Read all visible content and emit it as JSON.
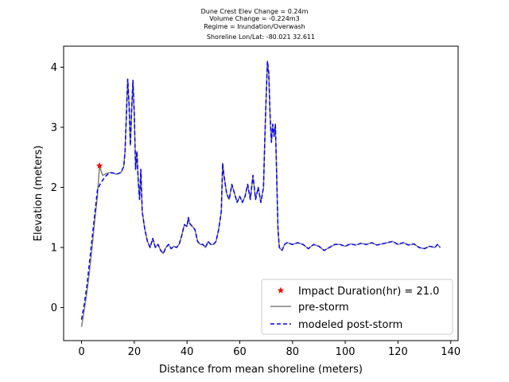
{
  "chart_data": {
    "type": "line",
    "title_lines": [
      "Dune Crest Elev Change = 0.24m",
      "Volume Change = -0.224m3",
      "Regime = Inundation/Overwash",
      "Shoreline Lon/Lat: -80.021 32.611"
    ],
    "xlabel": "Distance from mean shoreline (meters)",
    "ylabel": "Elevation (meters)",
    "xlim": [
      -6.8,
      142.8
    ],
    "ylim": [
      -0.55,
      4.35
    ],
    "xticks": [
      0,
      20,
      40,
      60,
      80,
      100,
      120,
      140
    ],
    "yticks": [
      0,
      1,
      2,
      3,
      4
    ],
    "legend_position": "lower right",
    "series": [
      {
        "name": "pre-storm",
        "color": "#808080",
        "style": "solid",
        "points": [
          [
            0,
            -0.32
          ],
          [
            1,
            -0.05
          ],
          [
            2,
            0.25
          ],
          [
            3,
            0.6
          ],
          [
            4,
            1.0
          ],
          [
            5,
            1.45
          ],
          [
            6,
            1.85
          ],
          [
            6.8,
            2.35
          ],
          [
            8,
            2.2
          ],
          [
            9,
            2.22
          ],
          [
            10,
            2.24
          ],
          [
            11,
            2.25
          ],
          [
            12,
            2.24
          ],
          [
            13,
            2.22
          ],
          [
            14,
            2.23
          ],
          [
            15,
            2.25
          ],
          [
            16,
            2.35
          ],
          [
            16.5,
            2.6
          ],
          [
            17,
            3.2
          ],
          [
            17.5,
            3.8
          ],
          [
            18,
            3.4
          ],
          [
            18.5,
            2.7
          ],
          [
            19,
            3.3
          ],
          [
            19.5,
            3.78
          ],
          [
            20,
            3.2
          ],
          [
            20.5,
            2.3
          ],
          [
            21,
            2.6
          ],
          [
            21.5,
            2.1
          ],
          [
            22,
            1.8
          ],
          [
            22.5,
            2.3
          ],
          [
            23,
            1.6
          ],
          [
            24,
            1.3
          ],
          [
            25,
            1.1
          ],
          [
            26,
            1.0
          ],
          [
            27,
            1.15
          ],
          [
            28,
            1.0
          ],
          [
            29,
            1.05
          ],
          [
            30,
            0.95
          ],
          [
            31,
            0.9
          ],
          [
            32,
            1.0
          ],
          [
            33,
            1.05
          ],
          [
            34,
            0.98
          ],
          [
            35,
            1.02
          ],
          [
            36,
            1.0
          ],
          [
            37,
            1.05
          ],
          [
            38,
            1.2
          ],
          [
            39,
            1.38
          ],
          [
            40,
            1.35
          ],
          [
            40.5,
            1.5
          ],
          [
            41,
            1.4
          ],
          [
            42,
            1.35
          ],
          [
            43,
            1.3
          ],
          [
            44,
            1.1
          ],
          [
            45,
            1.05
          ],
          [
            46,
            1.05
          ],
          [
            47,
            1.0
          ],
          [
            48,
            1.1
          ],
          [
            49,
            1.05
          ],
          [
            50,
            1.05
          ],
          [
            51,
            1.1
          ],
          [
            52,
            1.3
          ],
          [
            53,
            1.6
          ],
          [
            53.5,
            2.4
          ],
          [
            54,
            2.2
          ],
          [
            55,
            1.9
          ],
          [
            56,
            1.8
          ],
          [
            57,
            2.05
          ],
          [
            58,
            1.9
          ],
          [
            59,
            1.75
          ],
          [
            60,
            1.85
          ],
          [
            61,
            1.75
          ],
          [
            62,
            1.85
          ],
          [
            63,
            2.05
          ],
          [
            64,
            1.8
          ],
          [
            65,
            2.2
          ],
          [
            66,
            1.8
          ],
          [
            67,
            2.0
          ],
          [
            68,
            1.75
          ],
          [
            69,
            2.0
          ],
          [
            69.5,
            2.8
          ],
          [
            70,
            3.5
          ],
          [
            70.5,
            4.1
          ],
          [
            71,
            3.9
          ],
          [
            71.5,
            3.2
          ],
          [
            72,
            2.75
          ],
          [
            72.5,
            3.05
          ],
          [
            73,
            2.85
          ],
          [
            73.5,
            3.05
          ],
          [
            74,
            2.2
          ],
          [
            74.5,
            1.3
          ],
          [
            75,
            1.0
          ],
          [
            76,
            0.95
          ],
          [
            77,
            1.05
          ],
          [
            78,
            1.08
          ],
          [
            80,
            1.05
          ],
          [
            82,
            1.08
          ],
          [
            84,
            1.05
          ],
          [
            86,
            0.98
          ],
          [
            88,
            1.05
          ],
          [
            90,
            1.02
          ],
          [
            92,
            0.95
          ],
          [
            94,
            1.0
          ],
          [
            96,
            1.05
          ],
          [
            98,
            1.05
          ],
          [
            100,
            1.02
          ],
          [
            102,
            1.06
          ],
          [
            104,
            1.04
          ],
          [
            106,
            1.07
          ],
          [
            108,
            1.05
          ],
          [
            110,
            1.08
          ],
          [
            112,
            1.04
          ],
          [
            114,
            1.06
          ],
          [
            116,
            1.08
          ],
          [
            118,
            1.1
          ],
          [
            120,
            1.05
          ],
          [
            122,
            1.08
          ],
          [
            124,
            1.04
          ],
          [
            126,
            1.06
          ],
          [
            128,
            1.0
          ],
          [
            130,
            0.98
          ],
          [
            132,
            1.02
          ],
          [
            134,
            1.0
          ],
          [
            135,
            1.05
          ],
          [
            136,
            1.0
          ]
        ]
      },
      {
        "name": "modeled post-storm",
        "color": "#0000ff",
        "style": "dashed",
        "points": [
          [
            0,
            -0.2
          ],
          [
            1,
            0.05
          ],
          [
            2,
            0.35
          ],
          [
            3,
            0.75
          ],
          [
            4,
            1.15
          ],
          [
            5,
            1.55
          ],
          [
            6,
            1.95
          ],
          [
            7,
            2.05
          ],
          [
            8,
            2.12
          ],
          [
            9,
            2.18
          ],
          [
            10,
            2.22
          ],
          [
            11,
            2.24
          ],
          [
            12,
            2.24
          ],
          [
            13,
            2.22
          ],
          [
            14,
            2.23
          ],
          [
            15,
            2.25
          ],
          [
            16,
            2.35
          ],
          [
            16.5,
            2.6
          ],
          [
            17,
            3.2
          ],
          [
            17.5,
            3.8
          ],
          [
            18,
            3.4
          ],
          [
            18.5,
            2.7
          ],
          [
            19,
            3.3
          ],
          [
            19.5,
            3.78
          ],
          [
            20,
            3.2
          ],
          [
            20.5,
            2.3
          ],
          [
            21,
            2.6
          ],
          [
            21.5,
            2.1
          ],
          [
            22,
            1.8
          ],
          [
            22.5,
            2.3
          ],
          [
            23,
            1.6
          ],
          [
            24,
            1.3
          ],
          [
            25,
            1.1
          ],
          [
            26,
            1.0
          ],
          [
            27,
            1.15
          ],
          [
            28,
            1.0
          ],
          [
            29,
            1.05
          ],
          [
            30,
            0.95
          ],
          [
            31,
            0.9
          ],
          [
            32,
            1.0
          ],
          [
            33,
            1.05
          ],
          [
            34,
            0.98
          ],
          [
            35,
            1.02
          ],
          [
            36,
            1.0
          ],
          [
            37,
            1.05
          ],
          [
            38,
            1.2
          ],
          [
            39,
            1.38
          ],
          [
            40,
            1.35
          ],
          [
            40.5,
            1.5
          ],
          [
            41,
            1.4
          ],
          [
            42,
            1.35
          ],
          [
            43,
            1.3
          ],
          [
            44,
            1.1
          ],
          [
            45,
            1.05
          ],
          [
            46,
            1.05
          ],
          [
            47,
            1.0
          ],
          [
            48,
            1.1
          ],
          [
            49,
            1.05
          ],
          [
            50,
            1.05
          ],
          [
            51,
            1.1
          ],
          [
            52,
            1.3
          ],
          [
            53,
            1.6
          ],
          [
            53.5,
            2.4
          ],
          [
            54,
            2.2
          ],
          [
            55,
            1.9
          ],
          [
            56,
            1.8
          ],
          [
            57,
            2.05
          ],
          [
            58,
            1.9
          ],
          [
            59,
            1.75
          ],
          [
            60,
            1.85
          ],
          [
            61,
            1.75
          ],
          [
            62,
            1.85
          ],
          [
            63,
            2.05
          ],
          [
            64,
            1.8
          ],
          [
            65,
            2.2
          ],
          [
            66,
            1.8
          ],
          [
            67,
            2.0
          ],
          [
            68,
            1.75
          ],
          [
            69,
            2.0
          ],
          [
            69.5,
            2.8
          ],
          [
            70,
            3.5
          ],
          [
            70.5,
            4.1
          ],
          [
            71,
            3.9
          ],
          [
            71.5,
            3.2
          ],
          [
            72,
            2.75
          ],
          [
            72.5,
            3.05
          ],
          [
            73,
            2.85
          ],
          [
            73.5,
            3.05
          ],
          [
            74,
            2.2
          ],
          [
            74.5,
            1.3
          ],
          [
            75,
            1.0
          ],
          [
            76,
            0.95
          ],
          [
            77,
            1.05
          ],
          [
            78,
            1.08
          ],
          [
            80,
            1.05
          ],
          [
            82,
            1.08
          ],
          [
            84,
            1.05
          ],
          [
            86,
            0.98
          ],
          [
            88,
            1.05
          ],
          [
            90,
            1.02
          ],
          [
            92,
            0.95
          ],
          [
            94,
            1.0
          ],
          [
            96,
            1.05
          ],
          [
            98,
            1.05
          ],
          [
            100,
            1.02
          ],
          [
            102,
            1.06
          ],
          [
            104,
            1.04
          ],
          [
            106,
            1.07
          ],
          [
            108,
            1.05
          ],
          [
            110,
            1.08
          ],
          [
            112,
            1.04
          ],
          [
            114,
            1.06
          ],
          [
            116,
            1.08
          ],
          [
            118,
            1.1
          ],
          [
            120,
            1.05
          ],
          [
            122,
            1.08
          ],
          [
            124,
            1.04
          ],
          [
            126,
            1.06
          ],
          [
            128,
            1.0
          ],
          [
            130,
            0.98
          ],
          [
            132,
            1.02
          ],
          [
            134,
            1.0
          ],
          [
            135,
            1.05
          ],
          [
            136,
            1.0
          ]
        ]
      }
    ],
    "marker": {
      "name": "Impact Duration(hr) = 21.0",
      "color": "#ff0000",
      "symbol": "star",
      "x": 6.8,
      "y": 2.36
    }
  }
}
